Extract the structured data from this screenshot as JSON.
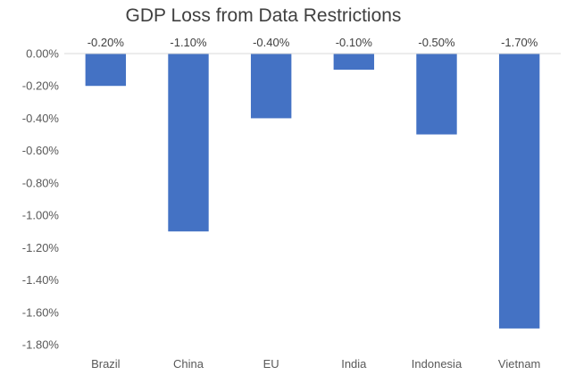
{
  "chart_data": {
    "type": "bar",
    "title": "GDP Loss from Data Restrictions",
    "xlabel": "",
    "ylabel": "",
    "categories": [
      "Brazil",
      "China",
      "EU",
      "India",
      "Indonesia",
      "Vietnam"
    ],
    "values": [
      -0.2,
      -1.1,
      -0.4,
      -0.1,
      -0.5,
      -1.7
    ],
    "data_labels": [
      "-0.20%",
      "-1.10%",
      "-0.40%",
      "-0.10%",
      "-0.50%",
      "-1.70%"
    ],
    "ylim": [
      -1.8,
      0
    ],
    "yticks": [
      0,
      -0.2,
      -0.4,
      -0.6,
      -0.8,
      -1.0,
      -1.2,
      -1.4,
      -1.6,
      -1.8
    ],
    "ytick_labels": [
      "0.00%",
      "-0.20%",
      "-0.40%",
      "-0.60%",
      "-0.80%",
      "-1.00%",
      "-1.20%",
      "-1.40%",
      "-1.60%",
      "-1.80%"
    ],
    "bar_color": "#4472C4",
    "grid": false,
    "legend": "none"
  }
}
